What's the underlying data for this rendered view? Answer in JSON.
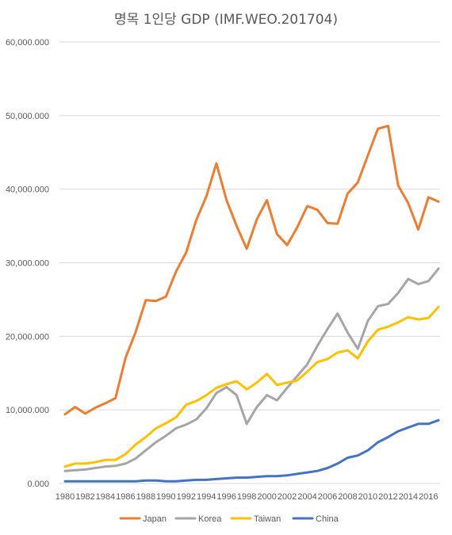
{
  "chart_data": {
    "type": "line",
    "title": "명목 1인당 GDP (IMF.WEO.201704)",
    "xlabel": "",
    "ylabel": "",
    "ylim": [
      0,
      60000
    ],
    "yticks": [
      0,
      10000,
      20000,
      30000,
      40000,
      50000,
      60000
    ],
    "ytick_labels": [
      "0.000",
      "10,000.000",
      "20,000.000",
      "30,000.000",
      "40,000.000",
      "50,000.000",
      "60,000.000"
    ],
    "x": [
      1980,
      1981,
      1982,
      1983,
      1984,
      1985,
      1986,
      1987,
      1988,
      1989,
      1990,
      1991,
      1992,
      1993,
      1994,
      1995,
      1996,
      1997,
      1998,
      1999,
      2000,
      2001,
      2002,
      2003,
      2004,
      2005,
      2006,
      2007,
      2008,
      2009,
      2010,
      2011,
      2012,
      2013,
      2014,
      2015,
      2016,
      2017
    ],
    "xtick_labels": [
      "1980",
      "1982",
      "1984",
      "1986",
      "1988",
      "1990",
      "1992",
      "1994",
      "1996",
      "1998",
      "2000",
      "2002",
      "2004",
      "2006",
      "2008",
      "2010",
      "2012",
      "2014",
      "2016"
    ],
    "grid": true,
    "legend_position": "bottom",
    "series": [
      {
        "name": "Japan",
        "color": "#ed7d31",
        "values": [
          9400,
          10400,
          9500,
          10300,
          10900,
          11600,
          17100,
          20600,
          24900,
          24800,
          25400,
          28800,
          31400,
          35800,
          39000,
          43500,
          38500,
          35000,
          31900,
          35900,
          38500,
          33900,
          32400,
          34800,
          37700,
          37200,
          35400,
          35300,
          39400,
          40900,
          44600,
          48200,
          48600,
          40500,
          38100,
          34500,
          38900,
          38300
        ]
      },
      {
        "name": "Korea",
        "color": "#a5a5a5",
        "values": [
          1700,
          1800,
          1900,
          2100,
          2300,
          2400,
          2700,
          3400,
          4500,
          5600,
          6500,
          7500,
          8000,
          8700,
          10200,
          12300,
          13100,
          12000,
          8100,
          10400,
          12000,
          11300,
          13000,
          14600,
          16200,
          18700,
          21000,
          23100,
          20500,
          18300,
          22100,
          24100,
          24400,
          25900,
          27800,
          27100,
          27500,
          29200
        ]
      },
      {
        "name": "Taiwan",
        "color": "#ffc000",
        "values": [
          2300,
          2700,
          2700,
          2900,
          3200,
          3200,
          4000,
          5300,
          6300,
          7500,
          8200,
          9000,
          10700,
          11200,
          12000,
          13000,
          13500,
          13900,
          12800,
          13700,
          14900,
          13400,
          13700,
          14000,
          15200,
          16500,
          16900,
          17800,
          18100,
          17000,
          19300,
          20900,
          21300,
          21900,
          22600,
          22300,
          22500,
          24000
        ]
      },
      {
        "name": "China",
        "color": "#4472c4",
        "values": [
          300,
          300,
          300,
          300,
          300,
          300,
          300,
          300,
          400,
          400,
          300,
          300,
          400,
          500,
          500,
          600,
          700,
          800,
          800,
          900,
          1000,
          1000,
          1100,
          1300,
          1500,
          1700,
          2100,
          2700,
          3500,
          3800,
          4500,
          5600,
          6300,
          7100,
          7600,
          8100,
          8100,
          8600
        ]
      }
    ]
  }
}
